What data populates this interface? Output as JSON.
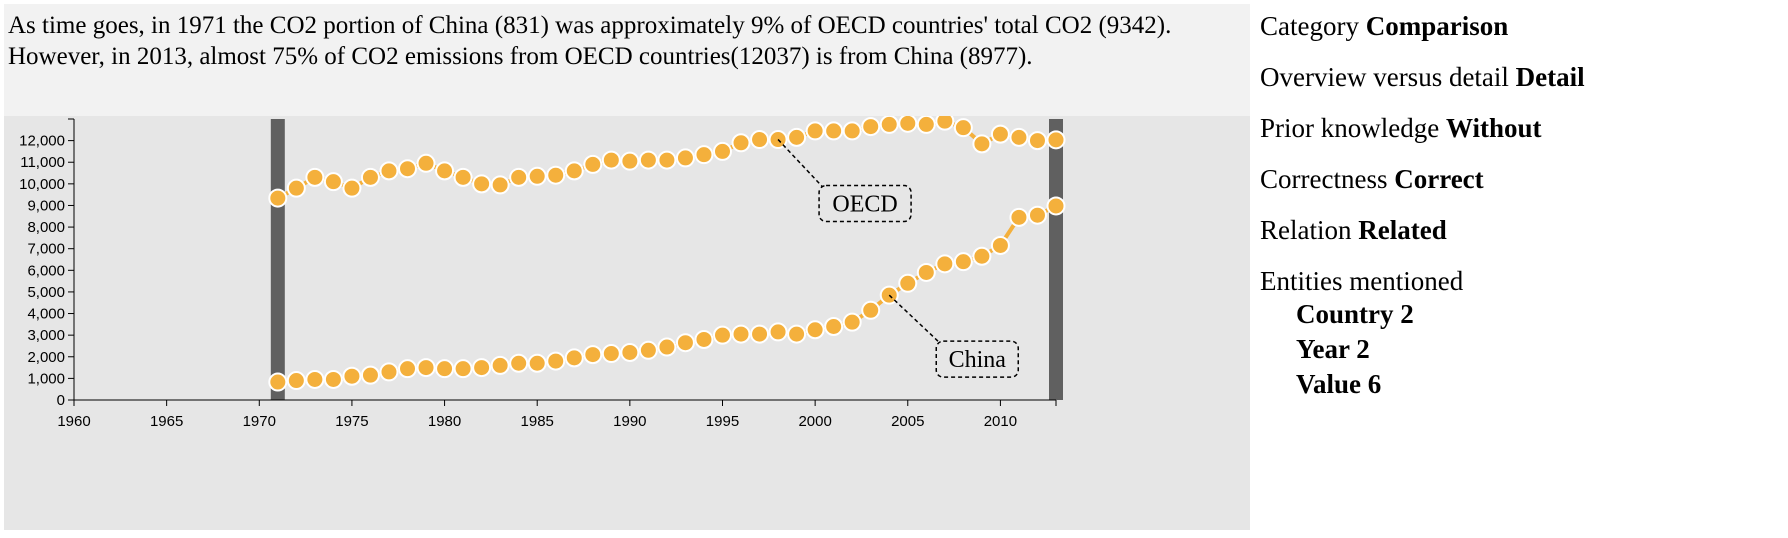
{
  "caption": "As time goes, in 1971 the CO2 portion of China (831) was approximately 9% of OECD countries' total CO2 (9342). However, in 2013, almost 75% of CO2 emissions from OECD countries(12037) is from China (8977).",
  "colors": {
    "point_fill": "#f4b03c",
    "point_stroke": "#ffffff",
    "line": "#f4b03c",
    "highlight_bar": "#606060",
    "panel_bg": "#e6e6e6",
    "caption_bg": "#f2f2f2"
  },
  "meta": {
    "category_label": "Category",
    "category_value": "Comparison",
    "overview_label": "Overview versus detail",
    "overview_value": "Detail",
    "prior_label": "Prior knowledge",
    "prior_value": "Without",
    "correctness_label": "Correctness",
    "correctness_value": "Correct",
    "relation_label": "Relation",
    "relation_value": "Related",
    "entities_label": "Entities mentioned",
    "entities": [
      "Country 2",
      "Year 2",
      "Value 6"
    ]
  },
  "chart_data": {
    "type": "line",
    "title": "",
    "xlabel": "",
    "ylabel": "",
    "xlim": [
      1960,
      2013
    ],
    "ylim": [
      0,
      13000
    ],
    "x_ticks": [
      1960,
      1965,
      1970,
      1975,
      1980,
      1985,
      1990,
      1995,
      2000,
      2005,
      2010
    ],
    "y_ticks": [
      0,
      1000,
      2000,
      3000,
      4000,
      5000,
      6000,
      7000,
      8000,
      9000,
      10000,
      11000,
      12000
    ],
    "y_tick_labels": [
      "0",
      "1,000",
      "2,000",
      "3,000",
      "4,000",
      "5,000",
      "6,000",
      "7,000",
      "8,000",
      "9,000",
      "10,000",
      "11,000",
      "12,000"
    ],
    "highlight_years": [
      1971,
      2013
    ],
    "x": [
      1971,
      1972,
      1973,
      1974,
      1975,
      1976,
      1977,
      1978,
      1979,
      1980,
      1981,
      1982,
      1983,
      1984,
      1985,
      1986,
      1987,
      1988,
      1989,
      1990,
      1991,
      1992,
      1993,
      1994,
      1995,
      1996,
      1997,
      1998,
      1999,
      2000,
      2001,
      2002,
      2003,
      2004,
      2005,
      2006,
      2007,
      2008,
      2009,
      2010,
      2011,
      2012,
      2013
    ],
    "series": [
      {
        "name": "OECD",
        "values": [
          9342,
          9800,
          10300,
          10100,
          9800,
          10300,
          10600,
          10700,
          10950,
          10600,
          10300,
          10000,
          9950,
          10300,
          10350,
          10400,
          10600,
          10900,
          11100,
          11050,
          11100,
          11100,
          11200,
          11350,
          11500,
          11900,
          12050,
          12050,
          12150,
          12450,
          12450,
          12450,
          12650,
          12750,
          12800,
          12750,
          12900,
          12600,
          11850,
          12300,
          12150,
          12000,
          12037
        ],
        "annotation": {
          "label": "OECD",
          "year": 1998
        }
      },
      {
        "name": "China",
        "values": [
          831,
          900,
          950,
          950,
          1100,
          1150,
          1300,
          1450,
          1500,
          1450,
          1450,
          1500,
          1600,
          1700,
          1700,
          1800,
          1950,
          2100,
          2150,
          2200,
          2300,
          2450,
          2650,
          2800,
          3000,
          3050,
          3050,
          3150,
          3050,
          3250,
          3400,
          3600,
          4150,
          4850,
          5400,
          5900,
          6300,
          6400,
          6650,
          7150,
          8450,
          8550,
          8977
        ],
        "annotation": {
          "label": "China",
          "year": 2004
        }
      }
    ]
  }
}
